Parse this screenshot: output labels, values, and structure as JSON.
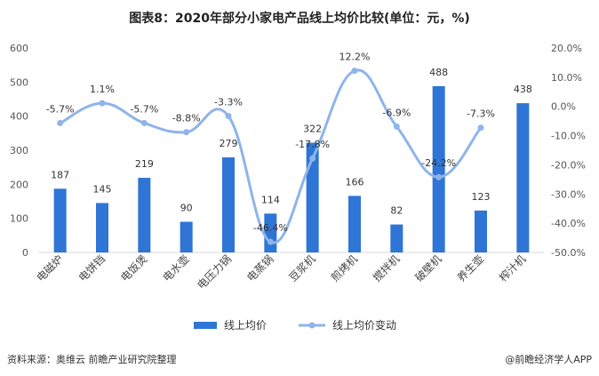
{
  "title": "图表8：2020年部分小家电产品线上均价比较(单位：元，%)",
  "footer": {
    "source": "资料来源：奥维云 前瞻产业研究院整理",
    "brand": "@前瞻经济学人APP"
  },
  "colors": {
    "bar": "#2e75d6",
    "line": "#8fb4ea",
    "axis": "#d9d9d9"
  },
  "chart_data": {
    "type": "bar",
    "categories": [
      "电磁炉",
      "电饼铛",
      "电饭煲",
      "电水壶",
      "电压力锅",
      "电蒸锅",
      "豆浆机",
      "煎烤机",
      "搅拌机",
      "破壁机",
      "养生壶",
      "榨汁机"
    ],
    "series": [
      {
        "name": "线上均价",
        "type": "bar",
        "axis": "left",
        "values": [
          187,
          145,
          219,
          90,
          279,
          114,
          322,
          166,
          82,
          488,
          123,
          438
        ],
        "labels": [
          "187",
          "145",
          "219",
          "90",
          "279",
          "114",
          "322",
          "166",
          "82",
          "488",
          "123",
          "438"
        ]
      },
      {
        "name": "线上均价变动",
        "type": "line",
        "axis": "right",
        "values": [
          -5.7,
          1.1,
          -5.7,
          -8.8,
          -3.3,
          -46.4,
          -17.8,
          12.2,
          -6.9,
          -24.2,
          -7.3,
          null
        ],
        "labels": [
          "-5.7%",
          "1.1%",
          "-5.7%",
          "-8.8%",
          "-3.3%",
          "-46.4%",
          "-17.8%",
          "12.2%",
          "-6.9%",
          "-24.2%",
          "-7.3%",
          ""
        ]
      }
    ],
    "y_left": {
      "min": 0,
      "max": 600,
      "ticks": [
        0,
        100,
        200,
        300,
        400,
        500,
        600
      ],
      "tick_labels": [
        "0",
        "100",
        "200",
        "300",
        "400",
        "500",
        "600"
      ]
    },
    "y_right": {
      "min": -50,
      "max": 20,
      "ticks": [
        -50,
        -40,
        -30,
        -20,
        -10,
        0,
        10,
        20
      ],
      "tick_labels": [
        "-50.0%",
        "-40.0%",
        "-30.0%",
        "-20.0%",
        "-10.0%",
        "0.0%",
        "10.0%",
        "20.0%"
      ]
    },
    "grid": false,
    "legend_position": "bottom"
  }
}
